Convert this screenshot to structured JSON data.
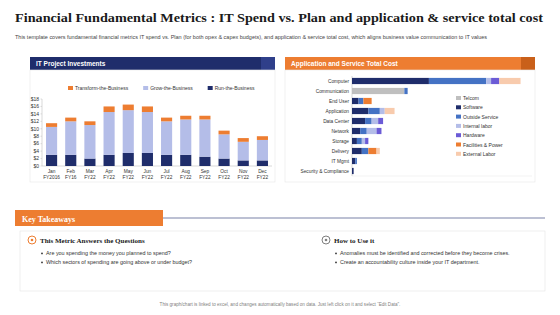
{
  "page": {
    "title": "Financial Fundamental Metrics : IT Spend vs. Plan and application & service total cost",
    "subtitle": "This template covers fundamental financial metrics IT spend vs. Plan (for both opex & capex budgets), and application & service total cost, which aligns business value communication to IT values",
    "takeaways": {
      "heading": "Key Takeaways",
      "columns": [
        {
          "title": "This Metric Answers the Questions",
          "bullets": [
            "Are you spending the money you planned to spend?",
            "Which sectors of spending are going above or under budget?"
          ]
        },
        {
          "title": "How to Use it",
          "bullets": [
            "Anomalies must be identified and corrected before they become crises.",
            "Create an accountability culture inside your IT department."
          ]
        }
      ]
    },
    "footer": "This graph/chart is linked to excel, and changes automatically based on data. Just left click on it and select “Edit Data”."
  },
  "chart_data": [
    {
      "type": "bar",
      "title": "IT Project Investments",
      "stacked": true,
      "legend": "top",
      "grid": false,
      "categories": [
        "Jan FY2016",
        "Feb FY16",
        "Mar FY22",
        "Apr FY22",
        "May FY22",
        "Jun FY22",
        "Jul FY22",
        "Aug FY22",
        "Sep FY22",
        "Oct FY22",
        "Nov FY22",
        "Dec FY22"
      ],
      "series": [
        {
          "name": "Transform-the-Business",
          "color": "#ed7d31",
          "values": [
            1,
            1,
            1,
            1.5,
            1.5,
            1.5,
            1,
            1,
            1,
            1,
            1,
            1
          ]
        },
        {
          "name": "Grow-the-Business",
          "color": "#b4bde8",
          "values": [
            7.5,
            9,
            9,
            11.5,
            11.5,
            11,
            9,
            9.5,
            10,
            6.5,
            5,
            5.5
          ]
        },
        {
          "name": "Run-the-Business",
          "color": "#1f2d6b",
          "values": [
            3,
            3,
            2,
            3,
            3.5,
            3.5,
            3,
            3,
            2.5,
            2,
            1.5,
            1.5
          ]
        }
      ],
      "ylim": [
        0,
        18
      ],
      "yticks": [
        {
          "value": 0,
          "label": "$0"
        },
        {
          "value": 2,
          "label": "$2"
        },
        {
          "value": 4,
          "label": "$4"
        },
        {
          "value": 6,
          "label": "$6"
        },
        {
          "value": 8,
          "label": "$8"
        },
        {
          "value": 10,
          "label": "$10"
        },
        {
          "value": 12,
          "label": "$12"
        },
        {
          "value": 14,
          "label": "$14"
        },
        {
          "value": 16,
          "label": "$16"
        },
        {
          "value": 18,
          "label": "$18"
        }
      ]
    },
    {
      "type": "bar",
      "title": "Application and Service Total Cost",
      "stacked": true,
      "orientation": "horizontal",
      "legend": "right",
      "tick_labels": "y",
      "categories": [
        "Computer",
        "Communication",
        "End User",
        "Application",
        "Data Center",
        "Network",
        "Storage",
        "Delivery",
        "IT Mgmt",
        "Security & Compliance"
      ],
      "series": [
        {
          "name": "Telcom",
          "color": "#bfbfbf",
          "values": [
            0,
            32,
            0,
            0,
            0,
            0,
            0,
            0,
            0,
            0
          ]
        },
        {
          "name": "Software",
          "color": "#1f2d6b",
          "values": [
            47,
            0,
            4,
            10,
            8,
            5,
            3,
            6,
            2,
            1
          ]
        },
        {
          "name": "Outside Service",
          "color": "#4472c4",
          "values": [
            35,
            2,
            3,
            7,
            4,
            4,
            3,
            4,
            1,
            0
          ]
        },
        {
          "name": "Internal labor",
          "color": "#b4bde8",
          "values": [
            3,
            0,
            0,
            3,
            4,
            6,
            2,
            0,
            0,
            0
          ]
        },
        {
          "name": "Hardware",
          "color": "#6b5bd6",
          "values": [
            5,
            0,
            0,
            0,
            3,
            3,
            2,
            0,
            0,
            0
          ]
        },
        {
          "name": "Facilities & Power",
          "color": "#ed7d31",
          "values": [
            0,
            0,
            5,
            0,
            0,
            0,
            0,
            5,
            0,
            0
          ]
        },
        {
          "name": "External Labor",
          "color": "#f8cbad",
          "values": [
            13,
            0,
            0,
            6,
            0,
            0,
            0,
            2,
            0,
            0
          ]
        }
      ],
      "xlim": [
        0,
        110
      ]
    }
  ]
}
